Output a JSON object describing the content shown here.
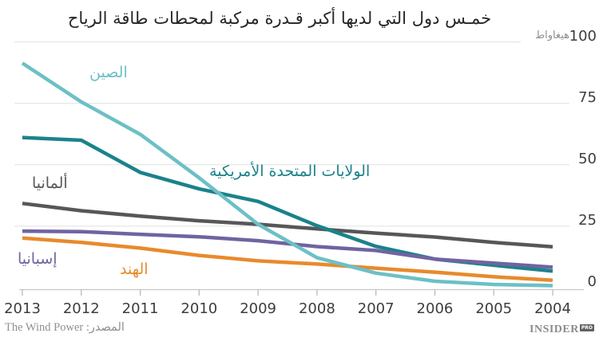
{
  "chart_data": {
    "type": "line",
    "title": "خمـس دول التي لديها أكبر قـدرة مركبة لمحطات طاقة الرياح",
    "unit_label": "هيغاواط",
    "x_ticks": [
      "2013",
      "2012",
      "2011",
      "2010",
      "2009",
      "2008",
      "2007",
      "2006",
      "2005",
      "2004"
    ],
    "y_ticks": [
      100,
      75,
      50,
      25,
      0
    ],
    "ylim": [
      0,
      100
    ],
    "x_axis_reversed": true,
    "grid": "horizontal",
    "legend_position": "inline-labels",
    "series": [
      {
        "name": "الصين",
        "color": "#6cc0c6",
        "values": [
          91.4,
          75.6,
          62.4,
          44.7,
          25.8,
          12.2,
          5.9,
          2.6,
          1.3,
          0.8
        ]
      },
      {
        "name": "الولايات المتحدة الأمريكية",
        "color": "#1b828b",
        "values": [
          61.1,
          60.0,
          46.9,
          40.2,
          35.1,
          25.2,
          16.8,
          11.6,
          9.1,
          6.7
        ]
      },
      {
        "name": "ألمانيا",
        "color": "#57575a",
        "values": [
          34.3,
          31.3,
          29.1,
          27.2,
          25.8,
          23.9,
          22.2,
          20.6,
          18.4,
          16.6
        ]
      },
      {
        "name": "إسبانيا",
        "color": "#7163a1",
        "values": [
          23.0,
          22.8,
          21.7,
          20.7,
          19.1,
          16.7,
          15.1,
          11.6,
          10.0,
          8.3
        ]
      },
      {
        "name": "الهند",
        "color": "#e88a2c",
        "values": [
          20.2,
          18.4,
          16.1,
          13.1,
          10.9,
          9.6,
          7.9,
          6.3,
          4.4,
          3.0
        ]
      }
    ],
    "source": "المصدر: The Wind Power",
    "logo": {
      "text": "INSIDER",
      "badge": "PRO"
    }
  }
}
